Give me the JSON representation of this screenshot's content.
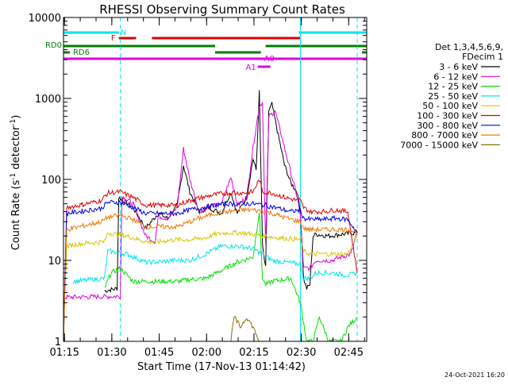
{
  "chart_data": {
    "type": "line",
    "title": "RHESSI Observing Summary Count Rates",
    "xlabel": "Start Time (17-Nov-13 01:14:42)",
    "ylabel_main": "Count Rate (s",
    "ylabel_sup1": "-1",
    "ylabel_mid": " detector",
    "ylabel_sup2": "-1",
    "ylabel_end": ")",
    "y_scale": "log",
    "ylim": [
      1,
      10000
    ],
    "xlim_minutes": [
      0,
      96
    ],
    "x_ticks": [
      {
        "label": "01:15",
        "minutes": 0.3
      },
      {
        "label": "01:30",
        "minutes": 15.3
      },
      {
        "label": "01:45",
        "minutes": 30.3
      },
      {
        "label": "02:00",
        "minutes": 45.3
      },
      {
        "label": "02:15",
        "minutes": 60.3
      },
      {
        "label": "02:30",
        "minutes": 75.3
      },
      {
        "label": "02:45",
        "minutes": 90.3
      }
    ],
    "y_ticks": [
      {
        "label": "1",
        "value": 1
      },
      {
        "label": "10",
        "value": 10
      },
      {
        "label": "100",
        "value": 100
      },
      {
        "label": "1000",
        "value": 1000
      },
      {
        "label": "10000",
        "value": 10000
      }
    ],
    "legend": {
      "placement": "right",
      "header": [
        "Det 1,3,4,5,6,9,",
        "FDecim 1"
      ],
      "entries": [
        {
          "label": "3 - 6 keV",
          "color": "#000000"
        },
        {
          "label": "6 - 12 keV",
          "color": "#e000e0"
        },
        {
          "label": "12 - 25 keV",
          "color": "#00e000"
        },
        {
          "label": "25 - 50 keV",
          "color": "#00e5ee"
        },
        {
          "label": "50 - 100 keV",
          "color": "#d4c800"
        },
        {
          "label": "100 - 300 keV",
          "color": "#e00000"
        },
        {
          "label": "300 - 800 keV",
          "color": "#0000e0"
        },
        {
          "label": "800 - 7000 keV",
          "color": "#f07800"
        },
        {
          "label": "7000 - 15000 keV",
          "color": "#8b7000"
        }
      ]
    },
    "series": [
      {
        "name": "3 - 6 keV",
        "color": "#000000",
        "points": [
          [
            13,
            4.2
          ],
          [
            17,
            4.5
          ],
          [
            17.5,
            60
          ],
          [
            22,
            45
          ],
          [
            26,
            25
          ],
          [
            30,
            38
          ],
          [
            33,
            33
          ],
          [
            36,
            48
          ],
          [
            38,
            150
          ],
          [
            40,
            70
          ],
          [
            43,
            40
          ],
          [
            46,
            45
          ],
          [
            50,
            38
          ],
          [
            53,
            70
          ],
          [
            55,
            38
          ],
          [
            58,
            60
          ],
          [
            60,
            180
          ],
          [
            61,
            130
          ],
          [
            62,
            1200
          ],
          [
            63,
            15
          ],
          [
            64,
            8
          ],
          [
            65,
            700
          ],
          [
            66,
            850
          ],
          [
            68,
            350
          ],
          [
            70,
            150
          ],
          [
            72,
            90
          ],
          [
            74,
            70
          ],
          [
            75,
            40
          ],
          [
            76,
            6
          ],
          [
            77,
            4.5
          ],
          [
            78,
            5
          ],
          [
            79,
            20
          ],
          [
            80,
            21
          ],
          [
            84,
            20
          ],
          [
            88,
            21
          ],
          [
            93,
            22
          ]
        ]
      },
      {
        "name": "6 - 12 keV",
        "color": "#e000e0",
        "points": [
          [
            0,
            3.5
          ],
          [
            18,
            3.6
          ],
          [
            18.5,
            62
          ],
          [
            22,
            50
          ],
          [
            26,
            20
          ],
          [
            29,
            17
          ],
          [
            30,
            35
          ],
          [
            33,
            33
          ],
          [
            36,
            45
          ],
          [
            38,
            240
          ],
          [
            40,
            100
          ],
          [
            43,
            40
          ],
          [
            46,
            45
          ],
          [
            50,
            50
          ],
          [
            53,
            110
          ],
          [
            55,
            48
          ],
          [
            58,
            60
          ],
          [
            60,
            250
          ],
          [
            62,
            800
          ],
          [
            63,
            900
          ],
          [
            64,
            15
          ],
          [
            65,
            600
          ],
          [
            67,
            700
          ],
          [
            69,
            350
          ],
          [
            72,
            120
          ],
          [
            74,
            60
          ],
          [
            75,
            35
          ],
          [
            76,
            8
          ],
          [
            78,
            8
          ],
          [
            79,
            9
          ],
          [
            80,
            10
          ],
          [
            85,
            10
          ],
          [
            88,
            11
          ],
          [
            91,
            12
          ],
          [
            93,
            22
          ]
        ]
      },
      {
        "name": "12 - 25 keV",
        "color": "#00e000",
        "points": [
          [
            13,
            4.5
          ],
          [
            15,
            7
          ],
          [
            18,
            8
          ],
          [
            22,
            5.5
          ],
          [
            30,
            5.5
          ],
          [
            36,
            5.5
          ],
          [
            40,
            5.8
          ],
          [
            45,
            6
          ],
          [
            50,
            7.5
          ],
          [
            55,
            9.5
          ],
          [
            60,
            11
          ],
          [
            62,
            40
          ],
          [
            63,
            6
          ],
          [
            64,
            5
          ],
          [
            66,
            5.5
          ],
          [
            72,
            6
          ],
          [
            75,
            3
          ],
          [
            77,
            1
          ],
          [
            79,
            1
          ],
          [
            81,
            2
          ],
          [
            84,
            1
          ],
          [
            88,
            1
          ],
          [
            90,
            1.5
          ],
          [
            93,
            2
          ]
        ]
      },
      {
        "name": "25 - 50 keV",
        "color": "#00e5ee",
        "points": [
          [
            3,
            5.5
          ],
          [
            13,
            6
          ],
          [
            14,
            13
          ],
          [
            20,
            12
          ],
          [
            26,
            9.5
          ],
          [
            30,
            9.5
          ],
          [
            35,
            10
          ],
          [
            40,
            10
          ],
          [
            45,
            12
          ],
          [
            50,
            15
          ],
          [
            55,
            15
          ],
          [
            60,
            14
          ],
          [
            63,
            12
          ],
          [
            66,
            10
          ],
          [
            70,
            9.5
          ],
          [
            75,
            9
          ],
          [
            76,
            6
          ],
          [
            78,
            6
          ],
          [
            80,
            7
          ],
          [
            85,
            7
          ],
          [
            90,
            6.5
          ],
          [
            93,
            7
          ]
        ]
      },
      {
        "name": "50 - 100 keV",
        "color": "#d4c800",
        "points": [
          [
            0,
            1.5
          ],
          [
            1,
            15
          ],
          [
            5,
            16
          ],
          [
            13,
            17
          ],
          [
            14,
            22
          ],
          [
            20,
            20
          ],
          [
            26,
            17
          ],
          [
            30,
            17
          ],
          [
            35,
            18
          ],
          [
            40,
            18
          ],
          [
            45,
            19
          ],
          [
            48,
            21
          ],
          [
            52,
            22
          ],
          [
            56,
            22
          ],
          [
            60,
            21
          ],
          [
            64,
            20
          ],
          [
            68,
            19
          ],
          [
            72,
            18.5
          ],
          [
            75,
            18
          ],
          [
            76,
            13
          ],
          [
            78,
            12
          ],
          [
            82,
            12
          ],
          [
            86,
            12
          ],
          [
            90,
            12
          ],
          [
            93,
            20
          ]
        ]
      },
      {
        "name": "100 - 300 keV",
        "color": "#e00000",
        "points": [
          [
            0,
            1
          ],
          [
            1,
            45
          ],
          [
            5,
            48
          ],
          [
            12,
            55
          ],
          [
            14,
            68
          ],
          [
            18,
            70
          ],
          [
            22,
            60
          ],
          [
            26,
            48
          ],
          [
            30,
            48
          ],
          [
            36,
            48
          ],
          [
            40,
            55
          ],
          [
            44,
            60
          ],
          [
            48,
            65
          ],
          [
            52,
            68
          ],
          [
            56,
            68
          ],
          [
            60,
            70
          ],
          [
            62,
            100
          ],
          [
            63,
            70
          ],
          [
            66,
            68
          ],
          [
            70,
            60
          ],
          [
            74,
            55
          ],
          [
            75,
            55
          ],
          [
            76,
            45
          ],
          [
            78,
            40
          ],
          [
            82,
            40
          ],
          [
            86,
            42
          ],
          [
            90,
            40
          ],
          [
            93,
            7
          ]
        ]
      },
      {
        "name": "300 - 800 keV",
        "color": "#0000e0",
        "points": [
          [
            0,
            1
          ],
          [
            1,
            38
          ],
          [
            5,
            40
          ],
          [
            12,
            44
          ],
          [
            14,
            52
          ],
          [
            18,
            52
          ],
          [
            22,
            45
          ],
          [
            26,
            38
          ],
          [
            30,
            38
          ],
          [
            36,
            38
          ],
          [
            40,
            42
          ],
          [
            44,
            45
          ],
          [
            48,
            48
          ],
          [
            52,
            50
          ],
          [
            56,
            50
          ],
          [
            60,
            50
          ],
          [
            64,
            48
          ],
          [
            68,
            44
          ],
          [
            72,
            40
          ],
          [
            75,
            42
          ],
          [
            76,
            33
          ],
          [
            78,
            32
          ],
          [
            82,
            32
          ],
          [
            86,
            33
          ],
          [
            90,
            32
          ],
          [
            93,
            22
          ]
        ]
      },
      {
        "name": "800 - 7000 keV",
        "color": "#f07800",
        "points": [
          [
            0,
            1
          ],
          [
            1,
            24
          ],
          [
            5,
            26
          ],
          [
            12,
            30
          ],
          [
            14,
            34
          ],
          [
            18,
            36
          ],
          [
            22,
            32
          ],
          [
            26,
            26
          ],
          [
            30,
            26
          ],
          [
            36,
            26
          ],
          [
            40,
            30
          ],
          [
            44,
            34
          ],
          [
            48,
            38
          ],
          [
            52,
            40
          ],
          [
            56,
            42
          ],
          [
            60,
            42
          ],
          [
            64,
            40
          ],
          [
            68,
            36
          ],
          [
            72,
            32
          ],
          [
            75,
            30
          ],
          [
            76,
            25
          ],
          [
            78,
            24
          ],
          [
            82,
            24
          ],
          [
            86,
            24
          ],
          [
            90,
            24
          ],
          [
            93,
            22
          ]
        ]
      },
      {
        "name": "7000 - 15000 keV",
        "color": "#8b7000",
        "points": [
          [
            53,
            1
          ],
          [
            54,
            2
          ],
          [
            56,
            1.5
          ],
          [
            58,
            2
          ],
          [
            60,
            1.5
          ],
          [
            62,
            1
          ]
        ]
      }
    ],
    "flags": [
      {
        "label": "N",
        "color": "#00e5ee"
      },
      {
        "label": "F",
        "color": "#e00000"
      },
      {
        "label": "RD0",
        "color": "#008000"
      },
      {
        "label": "RD6",
        "color": "#008000"
      },
      {
        "label": "A1",
        "color": "#e000e0"
      },
      {
        "label": "A0",
        "color": "#e000e0"
      }
    ],
    "saa_lines_minutes": [
      18,
      75,
      93
    ],
    "night_lines_minutes": [
      75,
      93
    ]
  },
  "footer": {
    "timestamp": "24-Oct-2021 16:20"
  }
}
